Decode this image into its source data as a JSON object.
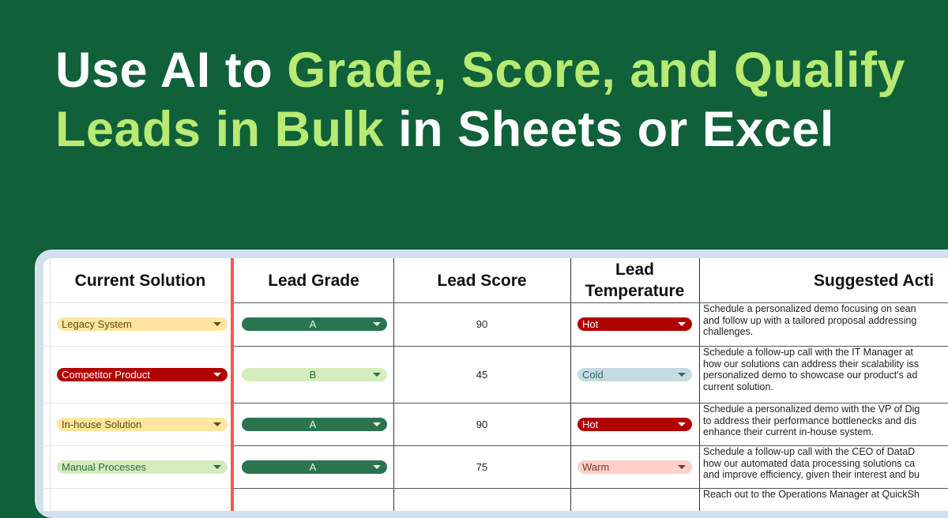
{
  "headline": {
    "part1": "Use AI to ",
    "part2": "Grade, Score, and Qualify Leads in Bulk",
    "part3": " in Sheets or Excel"
  },
  "colors": {
    "background": "#10603a",
    "accent": "#b8ea74",
    "hot": "#b10202",
    "cold": "#c6dbe1",
    "warm": "#ffcfc9",
    "grade_a": "#2a7450",
    "grade_b": "#d4edbc",
    "yellow": "#ffe5a0"
  },
  "table": {
    "headers": {
      "current_solution": "Current Solution",
      "lead_grade": "Lead Grade",
      "lead_score": "Lead Score",
      "lead_temperature": "Lead Temperature",
      "suggested_action": "Suggested Acti"
    },
    "rows": [
      {
        "solution": "Legacy System",
        "grade": "A",
        "score": "90",
        "temperature": "Hot",
        "action": [
          "Schedule a personalized demo focusing on sean",
          "and follow up with a tailored proposal addressing",
          "challenges."
        ]
      },
      {
        "solution": "Competitor Product",
        "grade": "B",
        "score": "45",
        "temperature": "Cold",
        "action": [
          "Schedule a follow-up call with the IT Manager at",
          "how our solutions can address their scalability iss",
          "personalized demo to showcase our product's ad",
          "current solution."
        ]
      },
      {
        "solution": "In-house Solution",
        "grade": "A",
        "score": "90",
        "temperature": "Hot",
        "action": [
          "Schedule a personalized demo with the VP of Dig",
          "to address their performance bottlenecks and dis",
          "enhance their current in-house system."
        ]
      },
      {
        "solution": "Manual Processes",
        "grade": "A",
        "score": "75",
        "temperature": "Warm",
        "action": [
          "Schedule a follow-up call with the CEO of DataD",
          "how our automated data processing solutions ca",
          "and improve efficiency, given their interest and bu"
        ]
      },
      {
        "solution": "",
        "grade": "",
        "score": "",
        "temperature": "",
        "action": [
          "Reach out to the Operations Manager at QuickSh"
        ]
      }
    ]
  }
}
